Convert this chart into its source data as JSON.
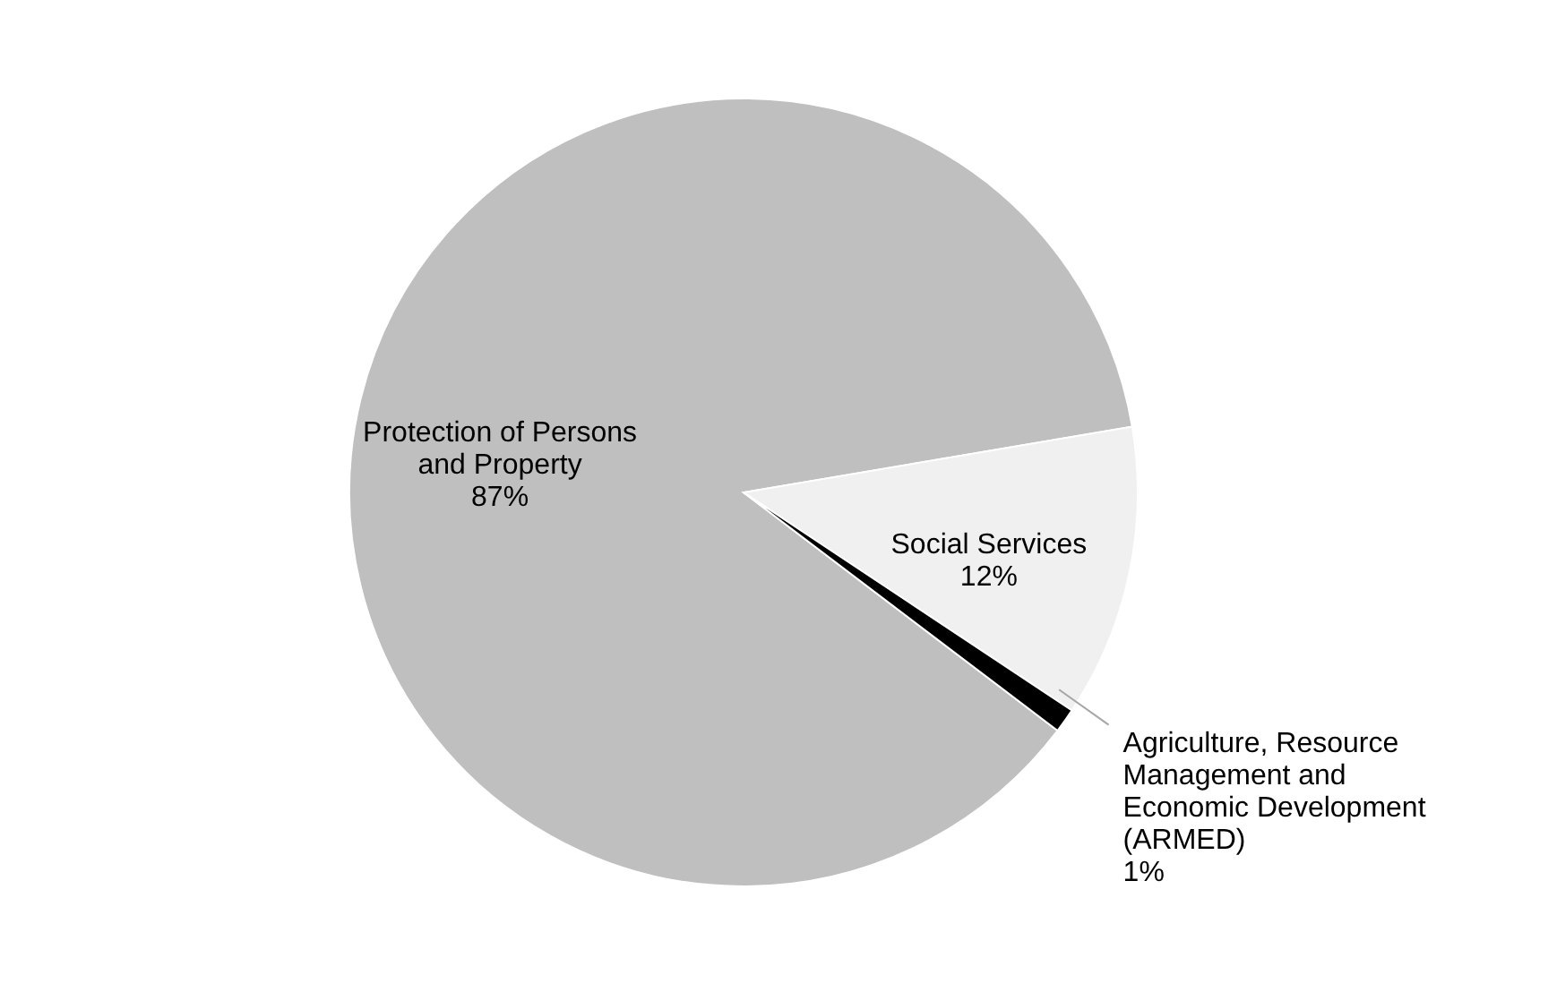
{
  "chart_data": {
    "type": "pie",
    "categories": [
      "Protection of Persons and Property",
      "Social Services",
      "Agriculture, Resource Management and Economic Development (ARMED)"
    ],
    "values": [
      87,
      12,
      1
    ],
    "colors": [
      "#bfbfbf",
      "#f0f0f0",
      "#000000"
    ],
    "value_labels": [
      "87%",
      "12%",
      "1%"
    ],
    "legend": false
  }
}
